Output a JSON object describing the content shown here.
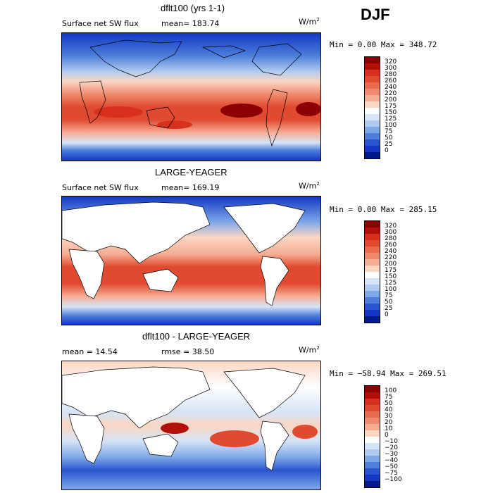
{
  "season": "DJF",
  "panels": [
    {
      "title": "dflt100 (yrs 1-1)",
      "label_left": "Surface net SW flux",
      "label_mid": "mean= 183.74",
      "units": "W/m",
      "units_exp": "2",
      "minmax": "Min =    0.00 Max = 348.72",
      "levels": [
        "320",
        "300",
        "280",
        "260",
        "240",
        "220",
        "200",
        "175",
        "150",
        "125",
        "100",
        "75",
        "50",
        "25",
        "0"
      ],
      "colors": [
        "#8b0000",
        "#b00f0a",
        "#d7301f",
        "#e04a30",
        "#ea6a4d",
        "#f08a6e",
        "#f5ad93",
        "#fbd6c2",
        "#ffffff",
        "#d6e4f7",
        "#b0cbf0",
        "#7fa8e8",
        "#4d7fdb",
        "#2a55d0",
        "#1238c4",
        "#001a8a"
      ]
    },
    {
      "title": "LARGE-YEAGER",
      "label_left": "Surface net SW flux",
      "label_mid": "mean= 169.19",
      "units": "W/m",
      "units_exp": "2",
      "minmax": "Min =    0.00 Max = 285.15",
      "levels": [
        "320",
        "300",
        "280",
        "260",
        "240",
        "220",
        "200",
        "175",
        "150",
        "125",
        "100",
        "75",
        "50",
        "25",
        "0"
      ],
      "colors": [
        "#8b0000",
        "#b00f0a",
        "#d7301f",
        "#e04a30",
        "#ea6a4d",
        "#f08a6e",
        "#f5ad93",
        "#fbd6c2",
        "#ffffff",
        "#d6e4f7",
        "#b0cbf0",
        "#7fa8e8",
        "#4d7fdb",
        "#2a55d0",
        "#1238c4",
        "#001a8a"
      ]
    },
    {
      "title": "dflt100 - LARGE-YEAGER",
      "label_left": "mean =   14.54",
      "label_mid": "rmse =   38.50",
      "units": "W/m",
      "units_exp": "2",
      "minmax": "Min = −58.94 Max = 269.51",
      "levels": [
        "100",
        "75",
        "50",
        "40",
        "30",
        "20",
        "10",
        "0",
        "−10",
        "−20",
        "−30",
        "−40",
        "−50",
        "−75",
        "−100"
      ],
      "colors": [
        "#8b0000",
        "#b00f0a",
        "#d7301f",
        "#e04a30",
        "#ea6a4d",
        "#f08a6e",
        "#f5ad93",
        "#fbd6c2",
        "#ffffff",
        "#d6e4f7",
        "#b0cbf0",
        "#7fa8e8",
        "#4d7fdb",
        "#2a55d0",
        "#1238c4",
        "#001a8a"
      ]
    }
  ]
}
